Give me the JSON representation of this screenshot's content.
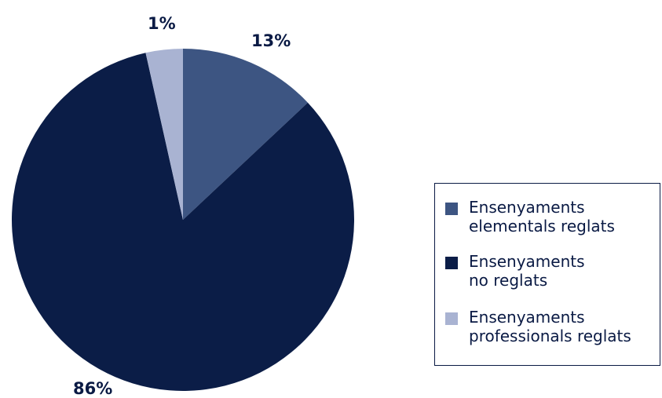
{
  "chart_data": {
    "type": "pie",
    "slices": [
      {
        "label_line1": "Ensenyaments",
        "label_line2": "elementals reglats",
        "value": 13,
        "display": "13%",
        "color": "#3d5582"
      },
      {
        "label_line1": "Ensenyaments",
        "label_line2": "no reglats",
        "value": 86,
        "display": "86%",
        "color": "#0b1d47"
      },
      {
        "label_line1": "Ensenyaments",
        "label_line2": "professionals reglats",
        "value": 1,
        "display": "1%",
        "color": "#a9b3d2"
      }
    ],
    "start_angle_deg": 0,
    "direction": "clockwise",
    "legend_position": "right"
  }
}
